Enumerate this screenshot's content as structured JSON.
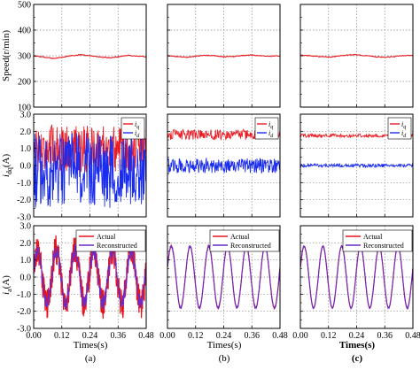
{
  "colors": {
    "actual": "#e8141c",
    "reconstructed": "#6a2cc8",
    "iq": "#ec1c24",
    "id": "#1a2cf0",
    "speed": "#e8141c",
    "grid": "#888888"
  },
  "axes": {
    "speed_ylabel": "Speed(r/min)",
    "current_ylabel": "idq(A)",
    "current_ylabel_base": "i",
    "current_ylabel_sub": "dq",
    "current_ylabel_unit": "(A)",
    "phase_ylabel": "ia(A)",
    "phase_ylabel_base": "i",
    "phase_ylabel_sub": "a",
    "phase_ylabel_unit": "(A)",
    "xlabel": "Times(s)",
    "speed_ticks": [
      "500",
      "400",
      "300",
      "200",
      "100"
    ],
    "current_ticks": [
      "3.0",
      "2.0",
      "1.0",
      "0.0",
      "-1.0",
      "-2.0",
      "-3.0"
    ],
    "phase_ticks": [
      "3.0",
      "2.0",
      "1.0",
      "0.0",
      "-1.0",
      "-2.0",
      "-3.0"
    ],
    "x_ticks": [
      "0.00",
      "0.12",
      "0.24",
      "0.36",
      "0.48"
    ]
  },
  "legend": {
    "iq": "iq",
    "iq_base": "i",
    "iq_sub": "q",
    "id": "id",
    "id_base": "i",
    "id_sub": "d",
    "actual": "Actual",
    "reconstructed": "Reconstructed"
  },
  "panel_labels": [
    "(a)",
    "(b)",
    "(c)"
  ],
  "chart_data": [
    {
      "type": "line",
      "panel": "(a)",
      "row": "speed",
      "xlim": [
        0,
        0.48
      ],
      "ylim": [
        100,
        500
      ],
      "grid": true,
      "series": [
        {
          "name": "",
          "x": [
            0,
            0.04,
            0.08,
            0.12,
            0.16,
            0.2,
            0.24,
            0.28,
            0.32,
            0.36,
            0.4,
            0.44,
            0.48
          ],
          "values": [
            300,
            295,
            290,
            294,
            300,
            304,
            300,
            296,
            292,
            296,
            302,
            298,
            296
          ]
        }
      ]
    },
    {
      "type": "line",
      "panel": "(a)",
      "row": "idq",
      "xlim": [
        0,
        0.48
      ],
      "ylim": [
        -3,
        3
      ],
      "grid": true,
      "series": [
        {
          "name": "iq",
          "mean": 1.0,
          "noise_amplitude": 1.4
        },
        {
          "name": "id",
          "mean": -0.3,
          "noise_amplitude": 2.2
        }
      ]
    },
    {
      "type": "line",
      "panel": "(a)",
      "row": "ia",
      "xlim": [
        0,
        0.48
      ],
      "ylim": [
        -3,
        3
      ],
      "grid": true,
      "series": [
        {
          "name": "Actual",
          "amplitude": 1.6,
          "frequency_hz": 12.5,
          "noise_amplitude": 0.9
        },
        {
          "name": "Reconstructed",
          "amplitude": 1.5,
          "frequency_hz": 12.5,
          "noise_amplitude": 0.4
        }
      ]
    },
    {
      "type": "line",
      "panel": "(b)",
      "row": "speed",
      "xlim": [
        0,
        0.48
      ],
      "ylim": [
        100,
        500
      ],
      "grid": true,
      "series": [
        {
          "name": "",
          "x": [
            0,
            0.04,
            0.08,
            0.12,
            0.16,
            0.2,
            0.24,
            0.28,
            0.32,
            0.36,
            0.4,
            0.44,
            0.48
          ],
          "values": [
            300,
            297,
            294,
            298,
            302,
            300,
            296,
            297,
            301,
            303,
            300,
            298,
            300
          ]
        }
      ]
    },
    {
      "type": "line",
      "panel": "(b)",
      "row": "idq",
      "xlim": [
        0,
        0.48
      ],
      "ylim": [
        -3,
        3
      ],
      "grid": true,
      "series": [
        {
          "name": "iq",
          "mean": 1.8,
          "noise_amplitude": 0.3
        },
        {
          "name": "id",
          "mean": 0.0,
          "noise_amplitude": 0.45
        }
      ]
    },
    {
      "type": "line",
      "panel": "(b)",
      "row": "ia",
      "xlim": [
        0,
        0.48
      ],
      "ylim": [
        -3,
        3
      ],
      "grid": true,
      "series": [
        {
          "name": "Actual",
          "amplitude": 1.8,
          "frequency_hz": 12.5,
          "noise_amplitude": 0.05
        },
        {
          "name": "Reconstructed",
          "amplitude": 1.8,
          "frequency_hz": 12.5,
          "noise_amplitude": 0.06
        }
      ]
    },
    {
      "type": "line",
      "panel": "(c)",
      "row": "speed",
      "xlim": [
        0,
        0.48
      ],
      "ylim": [
        100,
        500
      ],
      "grid": true,
      "series": [
        {
          "name": "",
          "x": [
            0,
            0.04,
            0.08,
            0.12,
            0.16,
            0.2,
            0.24,
            0.28,
            0.32,
            0.36,
            0.4,
            0.44,
            0.48
          ],
          "values": [
            302,
            300,
            297,
            295,
            298,
            303,
            304,
            300,
            296,
            294,
            297,
            301,
            300
          ]
        }
      ]
    },
    {
      "type": "line",
      "panel": "(c)",
      "row": "idq",
      "xlim": [
        0,
        0.48
      ],
      "ylim": [
        -3,
        3
      ],
      "grid": true,
      "series": [
        {
          "name": "iq",
          "mean": 1.75,
          "noise_amplitude": 0.1
        },
        {
          "name": "id",
          "mean": 0.0,
          "noise_amplitude": 0.1
        }
      ]
    },
    {
      "type": "line",
      "panel": "(c)",
      "row": "ia",
      "xlim": [
        0,
        0.48
      ],
      "ylim": [
        -3,
        3
      ],
      "grid": true,
      "series": [
        {
          "name": "Actual",
          "amplitude": 1.8,
          "frequency_hz": 12.5,
          "noise_amplitude": 0.03
        },
        {
          "name": "Reconstructed",
          "amplitude": 1.8,
          "frequency_hz": 12.5,
          "noise_amplitude": 0.04
        }
      ]
    }
  ]
}
